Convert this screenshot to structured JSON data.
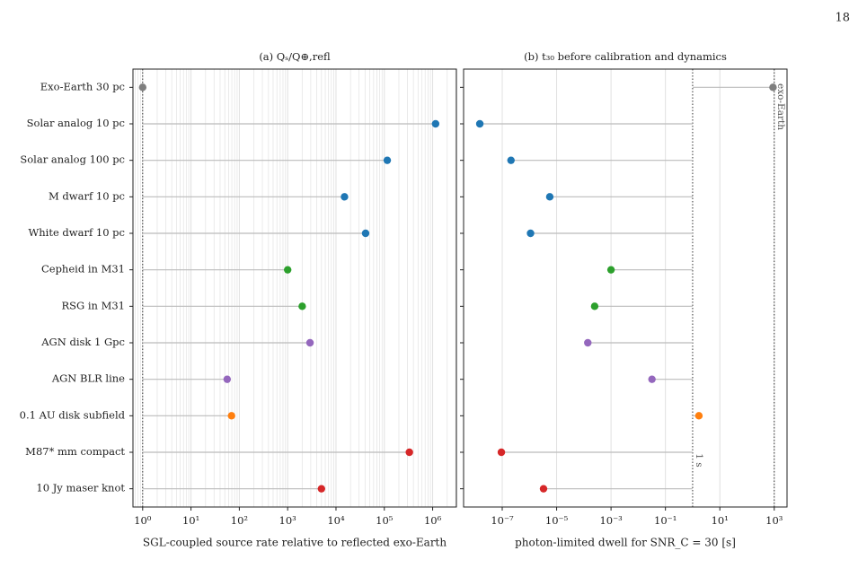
{
  "page_number": "18",
  "chart_data": [
    {
      "type": "dot",
      "title": "(a) Qₛ/Q⊕,refl",
      "x_label": "SGL-coupled source rate relative to reflected exo-Earth",
      "categories": [
        "Exo-Earth 30 pc",
        "Solar analog 10 pc",
        "Solar analog 100 pc",
        "M dwarf 10 pc",
        "White dwarf 10 pc",
        "Cepheid in M31",
        "RSG in M31",
        "AGN disk 1 Gpc",
        "AGN BLR line",
        "0.1 AU disk subfield",
        "M87* mm compact",
        "10 Jy maser knot"
      ],
      "values": [
        1,
        1150000,
        115000,
        15000,
        41000,
        1000,
        2000,
        2900,
        56,
        69,
        330000,
        5000
      ],
      "colors": [
        "#7f7f7f",
        "#1f77b4",
        "#1f77b4",
        "#1f77b4",
        "#1f77b4",
        "#2ca02c",
        "#2ca02c",
        "#9467bd",
        "#9467bd",
        "#ff7f0e",
        "#d62728",
        "#d62728"
      ],
      "xlog": true,
      "xlim": [
        0.63,
        3100000
      ],
      "xticks": [
        {
          "value": 1,
          "label": "10⁰"
        },
        {
          "value": 10,
          "label": "10¹"
        },
        {
          "value": 100,
          "label": "10²"
        },
        {
          "value": 1000,
          "label": "10³"
        },
        {
          "value": 10000,
          "label": "10⁴"
        },
        {
          "value": 100000,
          "label": "10⁵"
        },
        {
          "value": 1000000,
          "label": "10⁶"
        }
      ],
      "grid": true,
      "minor_grid": true,
      "reference_lines": [
        {
          "value": 1
        }
      ]
    },
    {
      "type": "dot",
      "title": "(b) t₃₀ before calibration and dynamics",
      "x_label": "photon-limited dwell for SNR_C = 30 [s]",
      "values": [
        900,
        1.5e-08,
        2.1e-07,
        5.6e-06,
        1.1e-06,
        0.001,
        0.00025,
        0.00014,
        0.032,
        1.7,
        9.3e-08,
        3.3e-06
      ],
      "colors": [
        "#7f7f7f",
        "#1f77b4",
        "#1f77b4",
        "#1f77b4",
        "#1f77b4",
        "#2ca02c",
        "#2ca02c",
        "#9467bd",
        "#9467bd",
        "#ff7f0e",
        "#d62728",
        "#d62728"
      ],
      "xlog": true,
      "xlim": [
        3.8e-09,
        2950
      ],
      "xticks": [
        {
          "value": 1e-07,
          "label": "10⁻⁷"
        },
        {
          "value": 1e-05,
          "label": "10⁻⁵"
        },
        {
          "value": 0.001,
          "label": "10⁻³"
        },
        {
          "value": 0.1,
          "label": "10⁻¹"
        },
        {
          "value": 10,
          "label": "10¹"
        },
        {
          "value": 1000,
          "label": "10³"
        }
      ],
      "grid": true,
      "minor_grid": false,
      "reference_lines": [
        {
          "value": 1,
          "label": "1 s"
        },
        {
          "value": 1000,
          "label": "exo-Earth"
        }
      ]
    }
  ]
}
